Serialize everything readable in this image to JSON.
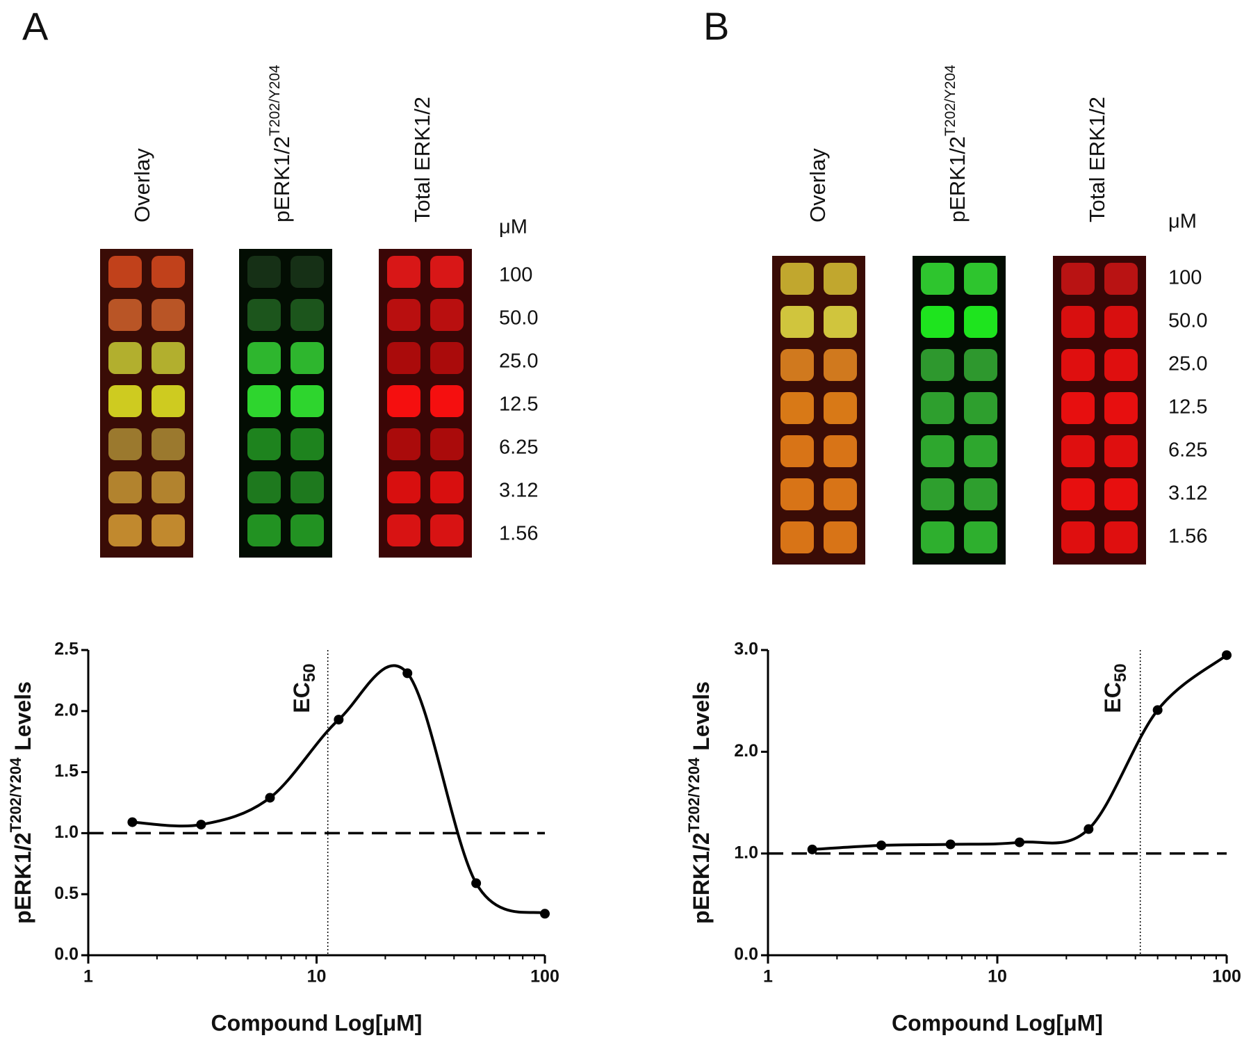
{
  "panels": [
    {
      "label": "A",
      "columns": [
        {
          "text": "Overlay"
        },
        {
          "text": "pERK1/2",
          "sup": "T202/Y204"
        },
        {
          "text": "Total ERK1/2"
        }
      ],
      "unit": "μM",
      "concentrations": [
        "100",
        "50.0",
        "25.0",
        "12.5",
        "6.25",
        "3.12",
        "1.56"
      ]
    },
    {
      "label": "B",
      "columns": [
        {
          "text": "Overlay"
        },
        {
          "text": "pERK1/2",
          "sup": "T202/Y204"
        },
        {
          "text": "Total ERK1/2"
        }
      ],
      "unit": "μM",
      "concentrations": [
        "100",
        "50.0",
        "25.0",
        "12.5",
        "6.25",
        "3.12",
        "1.56"
      ]
    }
  ],
  "chart_data": [
    {
      "type": "line",
      "x_label": "Compound Log[μM]",
      "y_label": {
        "text": "pERK1/2",
        "sup": "T202/Y204",
        "rest": "Levels"
      },
      "x": [
        1.56,
        3.12,
        6.25,
        12.5,
        25,
        50,
        100
      ],
      "series": [
        {
          "color": "#000000",
          "values": [
            1.09,
            1.07,
            1.29,
            1.93,
            2.31,
            0.59,
            0.34
          ]
        }
      ],
      "log_x": true,
      "xlim": [
        1,
        100
      ],
      "xticks": [
        1,
        10,
        100
      ],
      "ylim": [
        0,
        2.5
      ],
      "yticks": [
        {
          "value": 0,
          "label": "0.0"
        },
        0.5,
        {
          "value": 1,
          "label": "1.0"
        },
        1.5,
        {
          "value": 2,
          "label": "2.0"
        },
        2.5
      ],
      "baseline": 1.0,
      "ec50": {
        "x": 11.2,
        "label": "EC",
        "sub": "50"
      }
    },
    {
      "type": "line",
      "x_label": "Compound Log[μM]",
      "y_label": {
        "text": "pERK1/2",
        "sup": "T202/Y204",
        "rest": "Levels"
      },
      "x": [
        1.56,
        3.12,
        6.25,
        12.5,
        25,
        50,
        100
      ],
      "series": [
        {
          "color": "#000000",
          "values": [
            1.04,
            1.08,
            1.09,
            1.11,
            1.24,
            2.41,
            2.95
          ]
        }
      ],
      "log_x": true,
      "xlim": [
        1,
        100
      ],
      "xticks": [
        1,
        10,
        100
      ],
      "ylim": [
        0,
        3
      ],
      "yticks": [
        {
          "value": 0,
          "label": "0.0"
        },
        {
          "value": 1,
          "label": "1.0"
        },
        {
          "value": 2,
          "label": "2.0"
        },
        {
          "value": 3,
          "label": "3.0"
        }
      ],
      "baseline": 1.0,
      "ec50": {
        "x": 42,
        "label": "EC",
        "sub": "50"
      }
    }
  ]
}
